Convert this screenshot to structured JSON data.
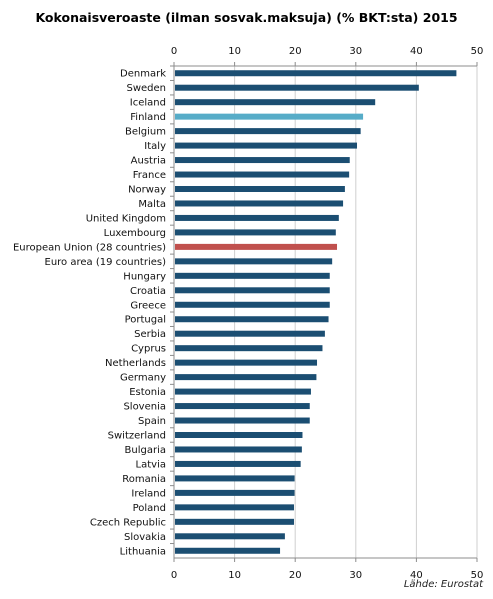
{
  "chart_data": {
    "type": "bar",
    "orientation": "horizontal",
    "title": "Kokonaisveroaste (ilman sosvak.maksuja) (% BKT:sta) 2015",
    "source": "Lähde: Eurostat",
    "xlabel": "",
    "ylabel": "",
    "xlim": [
      0,
      50
    ],
    "x_ticks": [
      0,
      10,
      20,
      30,
      40,
      50
    ],
    "x_axis_position": "top and bottom",
    "grid": true,
    "legend": "none",
    "colors": {
      "default": "#1b4e72",
      "finland": "#56acc8",
      "eu": "#c0504d",
      "grid": "#cfcfcf",
      "axis": "#8c8c8c"
    },
    "categories": [
      "Denmark",
      "Sweden",
      "Iceland",
      "Finland",
      "Belgium",
      "Italy",
      "Austria",
      "France",
      "Norway",
      "Malta",
      "United Kingdom",
      "Luxembourg",
      "European Union (28 countries)",
      "Euro area (19 countries)",
      "Hungary",
      "Croatia",
      "Greece",
      "Portugal",
      "Serbia",
      "Cyprus",
      "Netherlands",
      "Germany",
      "Estonia",
      "Slovenia",
      "Spain",
      "Switzerland",
      "Bulgaria",
      "Latvia",
      "Romania",
      "Ireland",
      "Poland",
      "Czech Republic",
      "Slovakia",
      "Lithuania"
    ],
    "values": [
      46.6,
      40.4,
      33.2,
      31.2,
      30.8,
      30.2,
      29.0,
      28.9,
      28.2,
      27.9,
      27.2,
      26.7,
      26.9,
      26.1,
      25.7,
      25.7,
      25.7,
      25.5,
      24.9,
      24.5,
      23.6,
      23.5,
      22.6,
      22.4,
      22.4,
      21.2,
      21.1,
      20.9,
      19.9,
      19.9,
      19.8,
      19.8,
      18.3,
      17.5
    ],
    "highlight": {
      "Finland": "finland",
      "European Union (28 countries)": "eu"
    }
  }
}
